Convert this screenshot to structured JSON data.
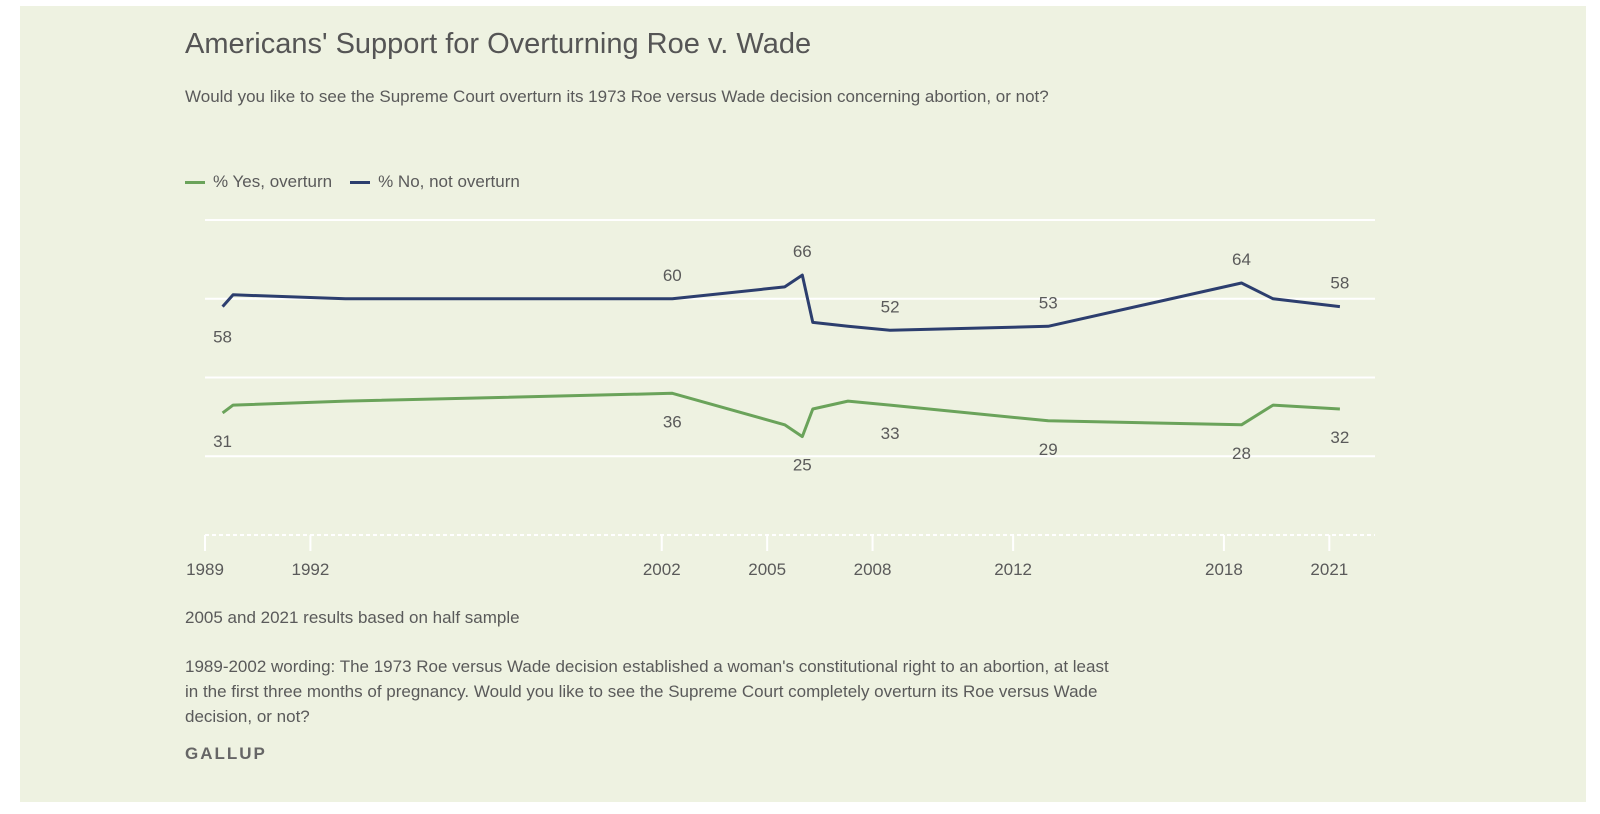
{
  "colors": {
    "yes": "#6aa35a",
    "no": "#2c3e6e",
    "background": "#eef2e1",
    "grid": "#ffffff"
  },
  "header": {
    "title": "Americans' Support for Overturning Roe v. Wade",
    "subtitle": "Would you like to see the Supreme Court overturn its 1973 Roe versus Wade decision concerning abortion, or not?"
  },
  "legend": {
    "yes_label": "% Yes, overturn",
    "no_label": "% No, not overturn"
  },
  "footer": {
    "note_half_sample": "2005 and 2021 results based on half sample",
    "note_wording": "1989-2002 wording: The 1973 Roe versus Wade decision established a woman's constitutional right to an abortion, at least in the first three months of pregnancy. Would you like to see the Supreme Court completely overturn its Roe versus Wade decision, or not?",
    "brand": "GALLUP"
  },
  "chart_data": {
    "type": "line",
    "title": "Americans' Support for Overturning Roe v. Wade",
    "xlabel": "",
    "ylabel": "",
    "xlim": [
      1989,
      2022.3
    ],
    "ylim": [
      0,
      80
    ],
    "grid": true,
    "legend_position": "top-left",
    "x_ticks": [
      "1989",
      "1992",
      "2002",
      "2005",
      "2008",
      "2012",
      "2018",
      "2021"
    ],
    "series": [
      {
        "name": "% Yes, overturn",
        "color_key": "yes",
        "points": [
          {
            "x": 1989.5,
            "y": 31,
            "label": "31"
          },
          {
            "x": 1989.8,
            "y": 33
          },
          {
            "x": 1993.0,
            "y": 34
          },
          {
            "x": 2002.3,
            "y": 36,
            "label": "36"
          },
          {
            "x": 2005.5,
            "y": 28
          },
          {
            "x": 2006.0,
            "y": 25,
            "label": "25"
          },
          {
            "x": 2006.3,
            "y": 32
          },
          {
            "x": 2007.3,
            "y": 34
          },
          {
            "x": 2008.5,
            "y": 33,
            "label": "33"
          },
          {
            "x": 2013.0,
            "y": 29,
            "label": "29"
          },
          {
            "x": 2018.5,
            "y": 28,
            "label": "28"
          },
          {
            "x": 2019.4,
            "y": 33
          },
          {
            "x": 2021.3,
            "y": 32,
            "label": "32"
          }
        ]
      },
      {
        "name": "% No, not overturn",
        "color_key": "no",
        "points": [
          {
            "x": 1989.5,
            "y": 58,
            "label": "58"
          },
          {
            "x": 1989.8,
            "y": 61
          },
          {
            "x": 1993.0,
            "y": 60
          },
          {
            "x": 2002.3,
            "y": 60,
            "label": "60"
          },
          {
            "x": 2005.5,
            "y": 63
          },
          {
            "x": 2006.0,
            "y": 66,
            "label": "66"
          },
          {
            "x": 2006.3,
            "y": 54
          },
          {
            "x": 2007.3,
            "y": 53
          },
          {
            "x": 2008.5,
            "y": 52,
            "label": "52"
          },
          {
            "x": 2013.0,
            "y": 53,
            "label": "53"
          },
          {
            "x": 2018.5,
            "y": 64,
            "label": "64"
          },
          {
            "x": 2019.4,
            "y": 60
          },
          {
            "x": 2021.3,
            "y": 58,
            "label": "58"
          }
        ]
      }
    ]
  }
}
